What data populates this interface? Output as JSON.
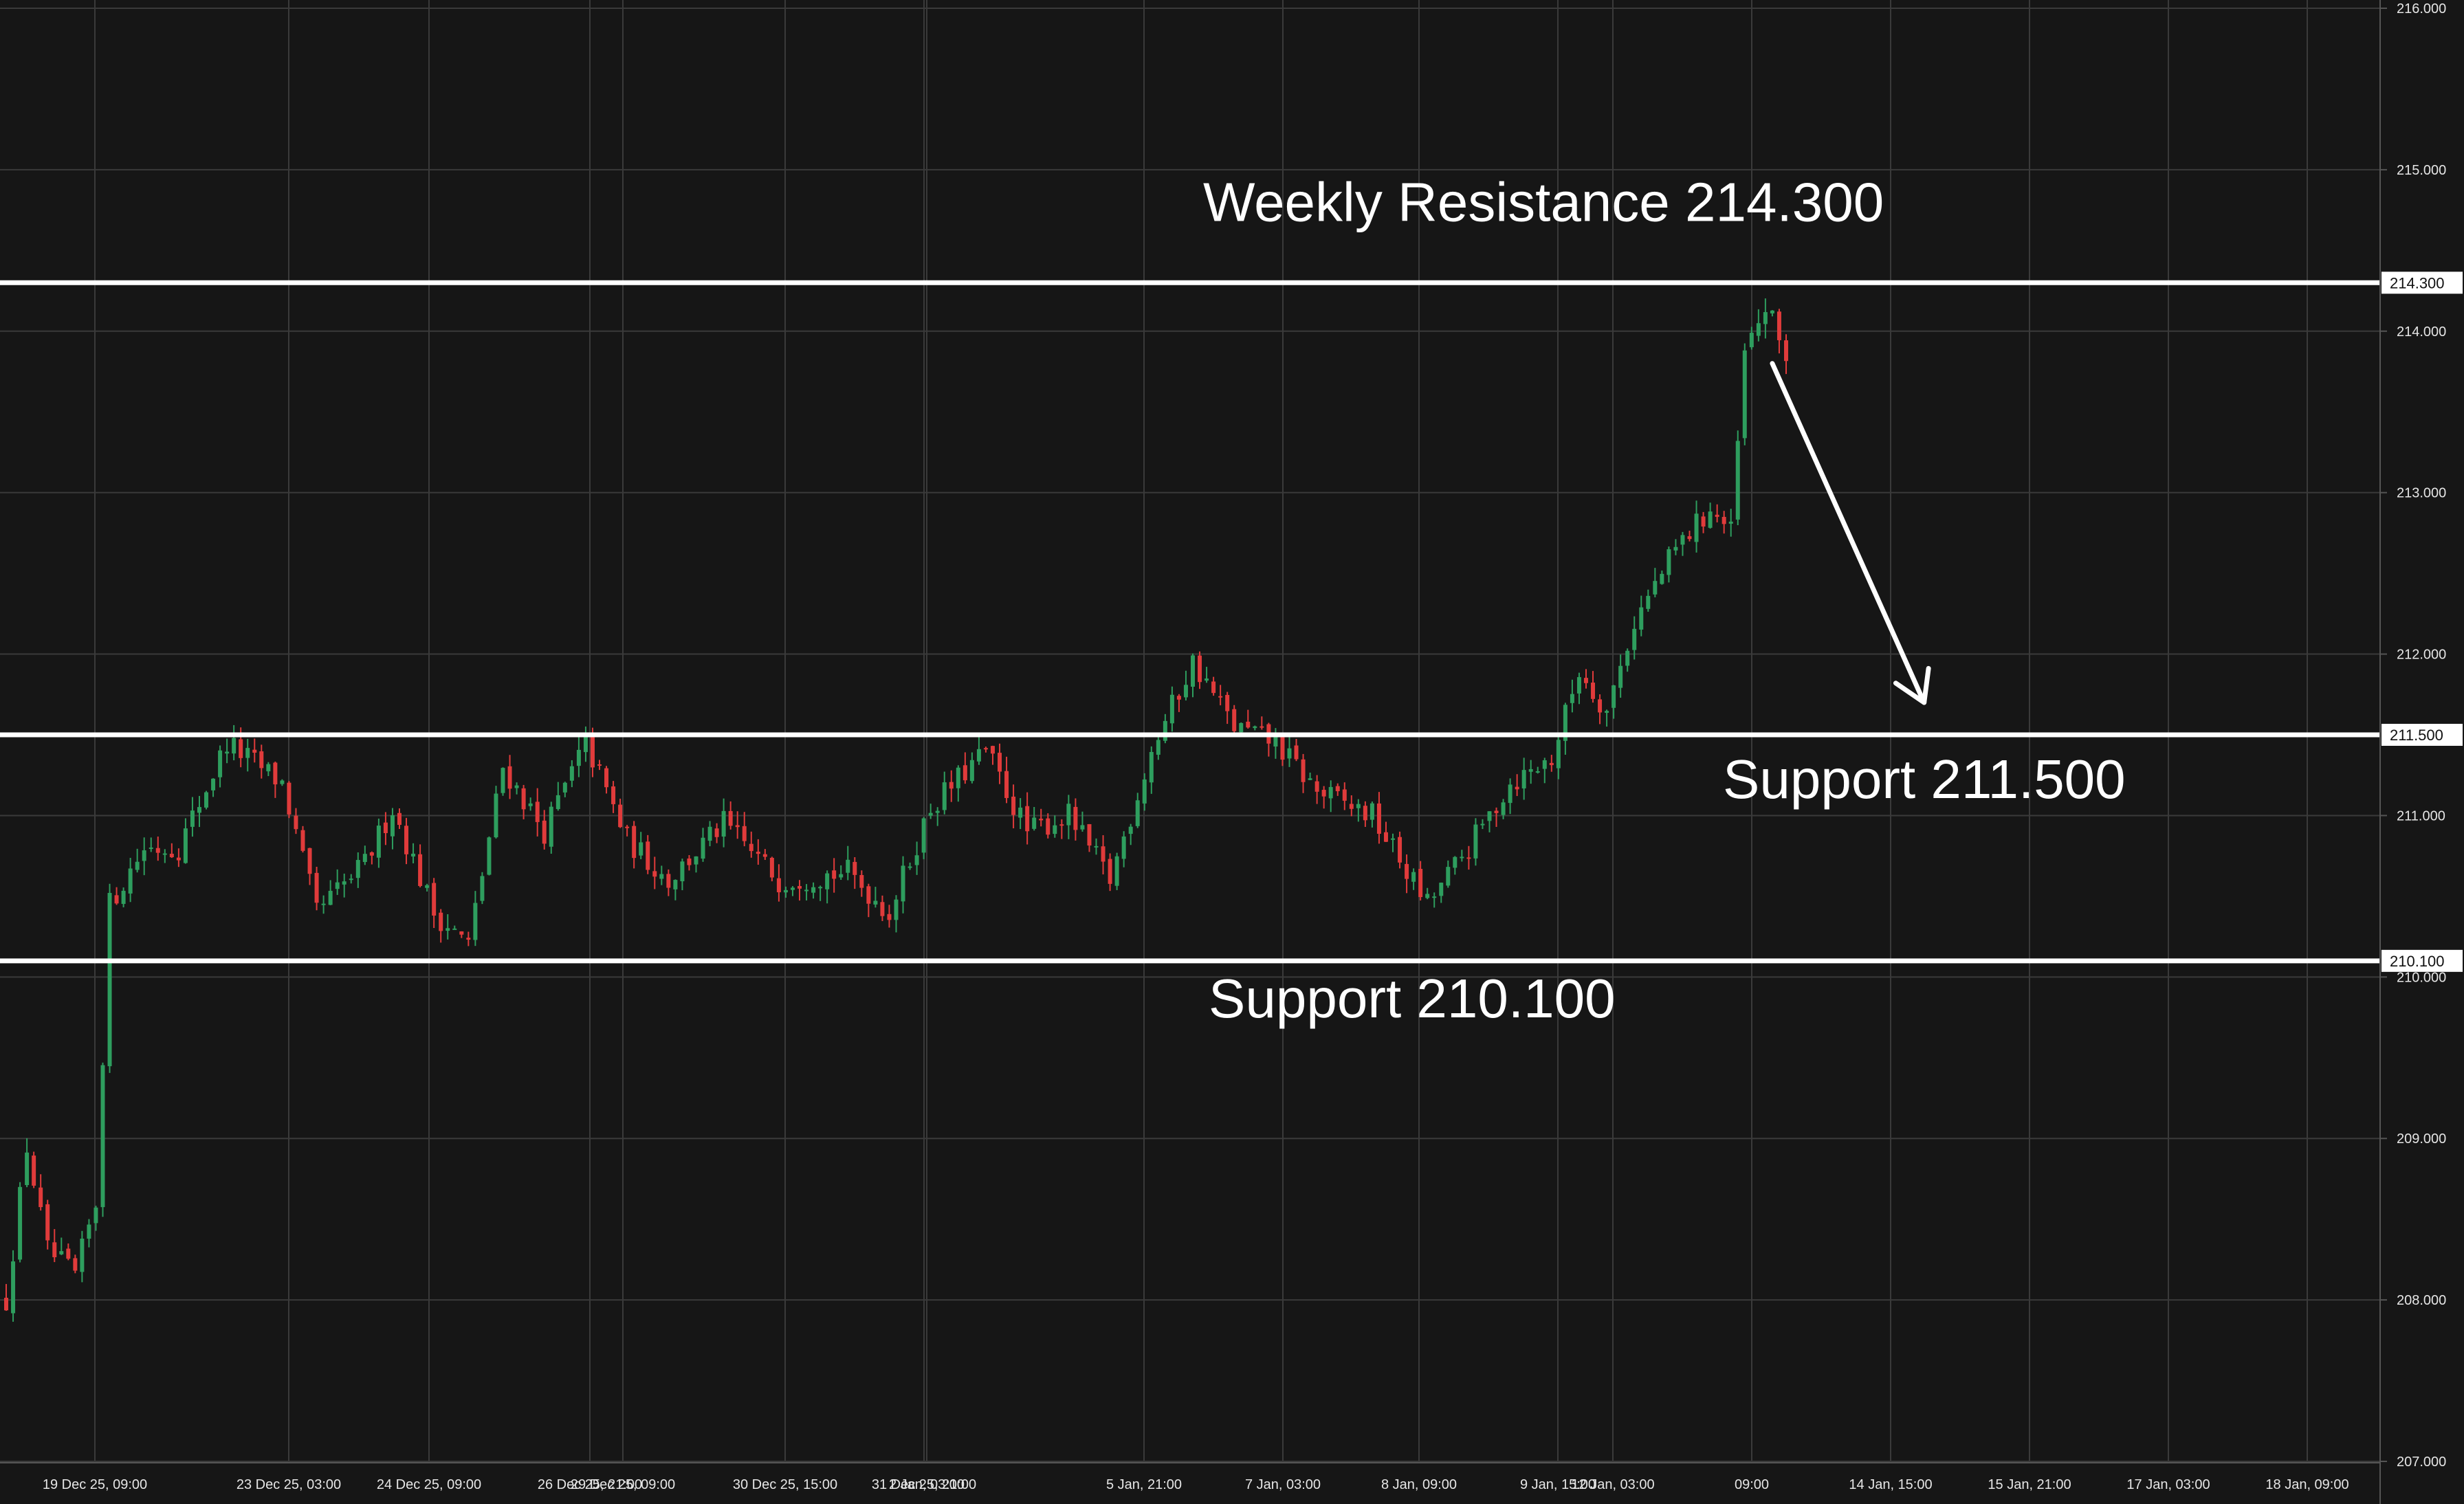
{
  "colors": {
    "background": "#161616",
    "grid": "#3a3a3a",
    "up": "#2e9e5e",
    "down": "#e03b3b",
    "level_line": "#ffffff",
    "text": "#e6e6e6"
  },
  "chart_data": {
    "type": "candlestick",
    "title": "",
    "xlabel": "",
    "ylabel": "",
    "ylim": [
      207.0,
      216.0
    ],
    "y_ticks": [
      "216.000",
      "215.000",
      "214.000",
      "213.000",
      "212.000",
      "211.000",
      "210.000",
      "209.000",
      "208.000",
      "207.000"
    ],
    "x_ticks": [
      "19 Dec 25, 09:00",
      "23 Dec 25, 03:00",
      "24 Dec 25, 09:00",
      "26 Dec 25, 21:00",
      "29 Dec 25, 09:00",
      "30 Dec 25, 15:00",
      "31 Dec 25, 21:00",
      "2 Jan, 03:00",
      "5 Jan, 21:00",
      "7 Jan, 03:00",
      "8 Jan, 09:00",
      "9 Jan, 15:00",
      "12 Jan, 03:00",
      "09:00",
      "14 Jan, 15:00",
      "15 Jan, 21:00",
      "17 Jan, 03:00",
      "18 Jan, 09:00"
    ],
    "grid": true,
    "levels": [
      {
        "name": "Weekly Resistance",
        "value": 214.3,
        "tag": "214.300",
        "label": "Weekly Resistance 214.300"
      },
      {
        "name": "Support",
        "value": 211.5,
        "tag": "211.500",
        "label": "Support 211.500"
      },
      {
        "name": "Support",
        "value": 210.1,
        "tag": "210.100",
        "label": "Support 210.100"
      }
    ],
    "projection_arrow": {
      "from": {
        "bar_index": 256,
        "price": 213.8
      },
      "to": {
        "bar_index": 278,
        "price": 211.7
      }
    },
    "price_path": [
      {
        "bar": 0,
        "price": 208.0
      },
      {
        "bar": 3,
        "price": 208.95
      },
      {
        "bar": 6,
        "price": 208.3
      },
      {
        "bar": 10,
        "price": 208.15
      },
      {
        "bar": 13,
        "price": 208.6
      },
      {
        "bar": 15,
        "price": 210.45
      },
      {
        "bar": 20,
        "price": 210.8
      },
      {
        "bar": 25,
        "price": 210.8
      },
      {
        "bar": 32,
        "price": 211.45
      },
      {
        "bar": 40,
        "price": 211.2
      },
      {
        "bar": 45,
        "price": 210.4
      },
      {
        "bar": 52,
        "price": 210.7
      },
      {
        "bar": 56,
        "price": 211.05
      },
      {
        "bar": 62,
        "price": 210.4
      },
      {
        "bar": 67,
        "price": 210.2
      },
      {
        "bar": 72,
        "price": 211.3
      },
      {
        "bar": 78,
        "price": 210.9
      },
      {
        "bar": 84,
        "price": 211.45
      },
      {
        "bar": 90,
        "price": 210.85
      },
      {
        "bar": 96,
        "price": 210.6
      },
      {
        "bar": 104,
        "price": 210.95
      },
      {
        "bar": 112,
        "price": 210.6
      },
      {
        "bar": 122,
        "price": 210.65
      },
      {
        "bar": 128,
        "price": 210.4
      },
      {
        "bar": 134,
        "price": 211.05
      },
      {
        "bar": 142,
        "price": 211.4
      },
      {
        "bar": 148,
        "price": 210.9
      },
      {
        "bar": 154,
        "price": 211.0
      },
      {
        "bar": 160,
        "price": 210.6
      },
      {
        "bar": 166,
        "price": 211.4
      },
      {
        "bar": 172,
        "price": 211.95
      },
      {
        "bar": 178,
        "price": 211.55
      },
      {
        "bar": 184,
        "price": 211.45
      },
      {
        "bar": 190,
        "price": 211.15
      },
      {
        "bar": 198,
        "price": 211.0
      },
      {
        "bar": 206,
        "price": 210.45
      },
      {
        "bar": 212,
        "price": 210.8
      },
      {
        "bar": 218,
        "price": 211.2
      },
      {
        "bar": 224,
        "price": 211.35
      },
      {
        "bar": 228,
        "price": 211.9
      },
      {
        "bar": 232,
        "price": 211.65
      },
      {
        "bar": 236,
        "price": 212.2
      },
      {
        "bar": 242,
        "price": 212.65
      },
      {
        "bar": 247,
        "price": 212.9
      },
      {
        "bar": 250,
        "price": 212.75
      },
      {
        "bar": 252,
        "price": 213.85
      },
      {
        "bar": 255,
        "price": 214.15
      },
      {
        "bar": 258,
        "price": 213.85
      }
    ]
  }
}
